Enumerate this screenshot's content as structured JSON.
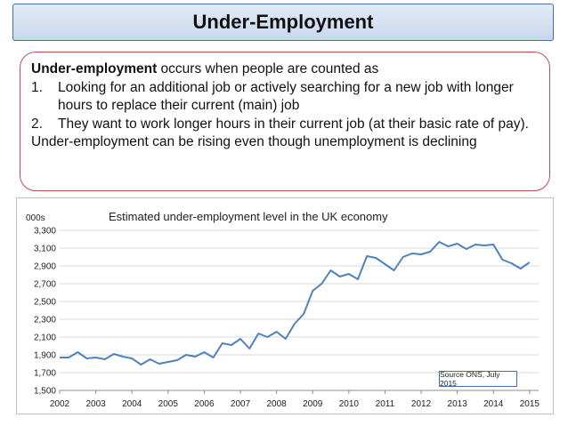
{
  "header": {
    "title": "Under-Employment"
  },
  "definition": {
    "intro_bold": "Under-employment",
    "intro_rest": " occurs when people are counted as",
    "items": [
      {
        "num": "1.",
        "text": "Looking for an additional job or actively searching for a new job with longer hours to replace their current (main) job"
      },
      {
        "num": "2.",
        "text": "They want to work longer hours in their current job (at their basic rate of pay)."
      }
    ],
    "conclusion": "Under-employment can be rising even though unemployment is declining"
  },
  "source_note": "Source ONS, July 2015",
  "colors": {
    "series": "#4f81bd",
    "title_border": "#4a6fa5",
    "definition_border": "#c0504d",
    "gridline": "#d9d9d9"
  },
  "chart_data": {
    "type": "line",
    "title": "Estimated under-employment level in the UK economy",
    "ylabel": "000s",
    "xlabel": "",
    "ylim": [
      1500,
      3300
    ],
    "yticks": [
      1500,
      1700,
      1900,
      2100,
      2300,
      2500,
      2700,
      2900,
      3100,
      3300
    ],
    "ytick_labels": [
      "1,500",
      "1,700",
      "1,900",
      "2,100",
      "2,300",
      "2,500",
      "2,700",
      "2,900",
      "3,100",
      "3,300"
    ],
    "xlim": [
      2002,
      2015.25
    ],
    "xticks": [
      2002,
      2003,
      2004,
      2005,
      2006,
      2007,
      2008,
      2009,
      2010,
      2011,
      2012,
      2013,
      2014,
      2015
    ],
    "grid": true,
    "legend": "none",
    "series": [
      {
        "x": [
          2002.0,
          2002.25,
          2002.5,
          2002.75,
          2003.0,
          2003.25,
          2003.5,
          2003.75,
          2004.0,
          2004.25,
          2004.5,
          2004.75,
          2005.0,
          2005.25,
          2005.5,
          2005.75,
          2006.0,
          2006.25,
          2006.5,
          2006.75,
          2007.0,
          2007.25,
          2007.5,
          2007.75,
          2008.0,
          2008.25,
          2008.5,
          2008.75,
          2009.0,
          2009.25,
          2009.5,
          2009.75,
          2010.0,
          2010.25,
          2010.5,
          2010.75,
          2011.0,
          2011.25,
          2011.5,
          2011.75,
          2012.0,
          2012.25,
          2012.5,
          2012.75,
          2013.0,
          2013.25,
          2013.5,
          2013.75,
          2014.0,
          2014.25,
          2014.5,
          2014.75,
          2015.0
        ],
        "values": [
          1870,
          1870,
          1930,
          1860,
          1870,
          1850,
          1910,
          1880,
          1860,
          1790,
          1850,
          1800,
          1820,
          1840,
          1900,
          1880,
          1930,
          1870,
          2030,
          2010,
          2080,
          1970,
          2140,
          2100,
          2160,
          2080,
          2250,
          2360,
          2620,
          2700,
          2850,
          2780,
          2810,
          2750,
          3010,
          2990,
          2920,
          2850,
          3000,
          3040,
          3030,
          3060,
          3170,
          3120,
          3150,
          3090,
          3140,
          3130,
          3140,
          2970,
          2930,
          2870,
          2940
        ]
      }
    ]
  }
}
